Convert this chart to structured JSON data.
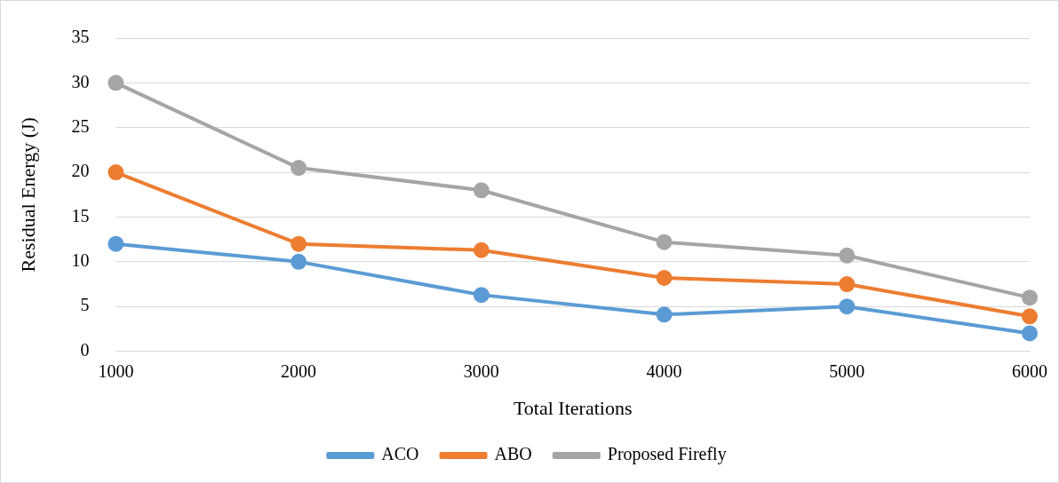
{
  "chart_data": {
    "type": "line",
    "xlabel": "Total Iterations",
    "ylabel": "Residual Energy (J)",
    "categories": [
      "1000",
      "2000",
      "3000",
      "4000",
      "5000",
      "6000"
    ],
    "series": [
      {
        "name": "ACO",
        "color": "#5b9bd5",
        "values": [
          12,
          10,
          6.3,
          4.1,
          5,
          2
        ]
      },
      {
        "name": "ABO",
        "color": "#ed7d31",
        "values": [
          20,
          12,
          11.3,
          8.2,
          7.5,
          3.9
        ]
      },
      {
        "name": "Proposed Firefly",
        "color": "#a5a5a5",
        "values": [
          30,
          20.5,
          18,
          12.2,
          10.7,
          6
        ]
      }
    ],
    "ylim": [
      0,
      35
    ],
    "yticks": [
      0,
      5,
      10,
      15,
      20,
      25,
      30,
      35
    ],
    "grid": "y",
    "legend": "bottom",
    "marker": "circle",
    "line_style": "solid"
  }
}
